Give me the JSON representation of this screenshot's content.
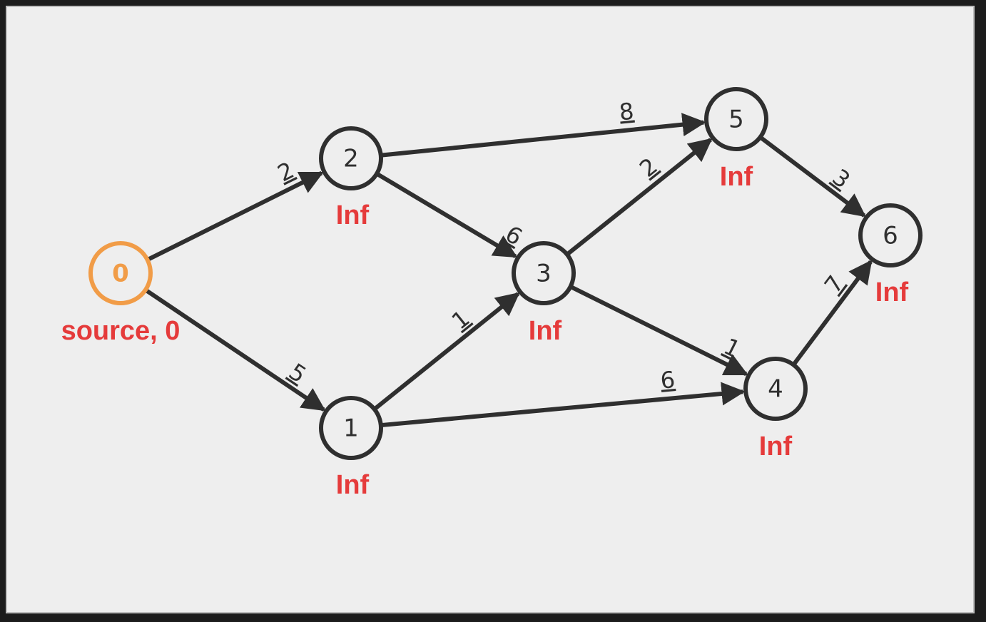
{
  "nodes": [
    {
      "id": "0",
      "label": "0",
      "dist": "source, 0",
      "source": true
    },
    {
      "id": "1",
      "label": "1",
      "dist": "Inf"
    },
    {
      "id": "2",
      "label": "2",
      "dist": "Inf"
    },
    {
      "id": "3",
      "label": "3",
      "dist": "Inf"
    },
    {
      "id": "4",
      "label": "4",
      "dist": "Inf"
    },
    {
      "id": "5",
      "label": "5",
      "dist": "Inf"
    },
    {
      "id": "6",
      "label": "6",
      "dist": "Inf"
    }
  ],
  "edges": [
    {
      "from": "0",
      "to": "2",
      "weight": "2"
    },
    {
      "from": "0",
      "to": "1",
      "weight": "5"
    },
    {
      "from": "2",
      "to": "5",
      "weight": "8"
    },
    {
      "from": "2",
      "to": "3",
      "weight": "6"
    },
    {
      "from": "1",
      "to": "3",
      "weight": "1"
    },
    {
      "from": "1",
      "to": "4",
      "weight": "6"
    },
    {
      "from": "3",
      "to": "5",
      "weight": "2"
    },
    {
      "from": "3",
      "to": "4",
      "weight": "1"
    },
    {
      "from": "5",
      "to": "6",
      "weight": "3"
    },
    {
      "from": "4",
      "to": "6",
      "weight": "7"
    }
  ],
  "colors": {
    "node_stroke": "#2f2f2f",
    "source_stroke": "#f19c47",
    "dist_text": "#e53b3b",
    "background": "#eeeeee"
  }
}
